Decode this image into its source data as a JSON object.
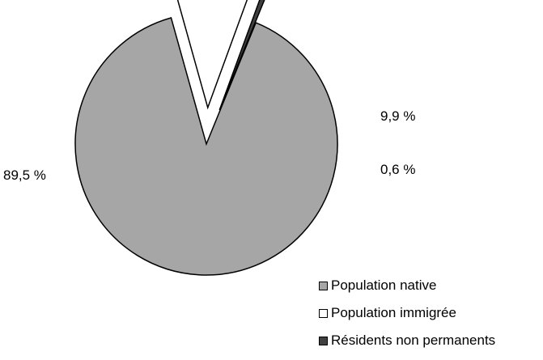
{
  "chart_data": {
    "type": "pie",
    "labels": [
      "Population native",
      "Population immigrée",
      "Résidents non permanents"
    ],
    "values": [
      89.5,
      9.9,
      0.6
    ],
    "value_labels": [
      "89,5  %",
      "9,9  %",
      "0,6  %"
    ],
    "colors": [
      "#a6a6a6",
      "#ffffff",
      "#404040"
    ],
    "exploded": [
      false,
      true,
      true
    ],
    "legend_position": "bottom-right",
    "title": ""
  }
}
